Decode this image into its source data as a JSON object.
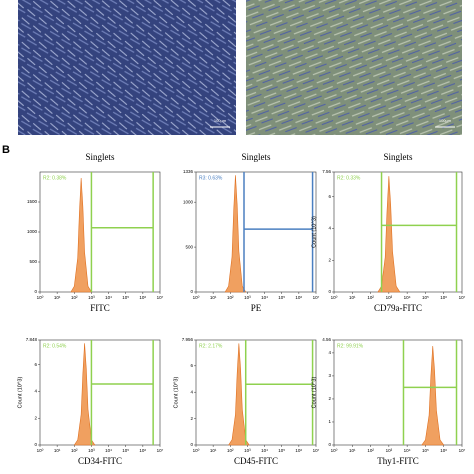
{
  "panel_label": "B",
  "images": [
    {
      "scale_bar": "100μm"
    },
    {
      "scale_bar": "100μm"
    }
  ],
  "chart_data": [
    {
      "type": "area",
      "title": "Singlets",
      "xlabel": "FITC",
      "x": [
        1.8,
        2.0,
        2.2,
        2.3,
        2.4,
        2.5,
        2.6,
        2.8,
        3.0
      ],
      "values": [
        0,
        95,
        570,
        1330,
        1900,
        1425,
        665,
        95,
        0
      ],
      "color": "#f0a060",
      "xlim": [
        0,
        7
      ],
      "xticks": [
        {
          "value": 0,
          "label": "10⁰"
        },
        {
          "value": 1,
          "label": "10¹"
        },
        {
          "value": 2,
          "label": "10²"
        },
        {
          "value": 3,
          "label": "10³"
        },
        {
          "value": 4,
          "label": "10⁴"
        },
        {
          "value": 5,
          "label": "10⁵"
        },
        {
          "value": 6,
          "label": "10⁶"
        },
        {
          "value": 7,
          "label": "10⁷"
        }
      ],
      "ylim": [
        0,
        2000
      ],
      "yticks": [
        0,
        500,
        1000,
        1500
      ],
      "gate": {
        "x": [
          3.0,
          6.6
        ],
        "level": 1070,
        "color": "#8fd14f"
      },
      "gate_label": "R2: 0.38%"
    },
    {
      "type": "area",
      "title": "Singlets",
      "xlabel": "PE",
      "x": [
        1.7,
        1.9,
        2.1,
        2.2,
        2.3,
        2.4,
        2.5,
        2.7,
        2.9
      ],
      "values": [
        0,
        65,
        390,
        910,
        1300,
        975,
        455,
        65,
        0
      ],
      "color": "#f0a060",
      "xlim": [
        0,
        7
      ],
      "xticks": [
        {
          "value": 0,
          "label": "10⁰"
        },
        {
          "value": 1,
          "label": "10¹"
        },
        {
          "value": 2,
          "label": "10²"
        },
        {
          "value": 3,
          "label": "10³"
        },
        {
          "value": 4,
          "label": "10⁴"
        },
        {
          "value": 5,
          "label": "10⁵"
        },
        {
          "value": 6,
          "label": "10⁶"
        },
        {
          "value": 7,
          "label": "10⁷"
        }
      ],
      "ylim": [
        0,
        1336
      ],
      "yticks": [
        0,
        500,
        1000,
        1336
      ],
      "gate": {
        "x": [
          2.8,
          6.8
        ],
        "level": 700,
        "color": "#4a7fc1"
      },
      "gate_label": "R3: 0.63%"
    },
    {
      "type": "area",
      "title": "Singlets",
      "xlabel": "CD79a-FITC",
      "ylabel": "Count (10^3)",
      "x": [
        2.4,
        2.6,
        2.8,
        2.9,
        3.0,
        3.1,
        3.2,
        3.4,
        3.6
      ],
      "values": [
        0,
        0.37,
        2.19,
        5.11,
        7.3,
        5.48,
        2.56,
        0.37,
        0
      ],
      "color": "#f0a060",
      "xlim": [
        0,
        7
      ],
      "xticks": [
        {
          "value": 0,
          "label": "10⁰"
        },
        {
          "value": 1,
          "label": "10¹"
        },
        {
          "value": 2,
          "label": "10²"
        },
        {
          "value": 3,
          "label": "10³"
        },
        {
          "value": 4,
          "label": "10⁴"
        },
        {
          "value": 5,
          "label": "10⁵"
        },
        {
          "value": 6,
          "label": "10⁶"
        },
        {
          "value": 7,
          "label": "10⁷"
        }
      ],
      "ylim": [
        0,
        7.56
      ],
      "yticks": [
        0,
        2,
        4,
        6,
        7.56
      ],
      "gate": {
        "x": [
          2.6,
          6.7
        ],
        "level": 4.2,
        "color": "#8fd14f"
      },
      "gate_label": "R2: 0.33%"
    },
    {
      "type": "area",
      "xlabel": "CD34-FITC",
      "ylabel": "Count (10^3)",
      "x": [
        2.0,
        2.2,
        2.4,
        2.5,
        2.6,
        2.7,
        2.8,
        3.0,
        3.2
      ],
      "values": [
        0,
        0.38,
        2.28,
        5.32,
        7.6,
        5.7,
        2.66,
        0.38,
        0
      ],
      "color": "#f0a060",
      "xlim": [
        0,
        7
      ],
      "xticks": [
        {
          "value": 0,
          "label": "10⁰"
        },
        {
          "value": 1,
          "label": "10¹"
        },
        {
          "value": 2,
          "label": "10²"
        },
        {
          "value": 3,
          "label": "10³"
        },
        {
          "value": 4,
          "label": "10⁴"
        },
        {
          "value": 5,
          "label": "10⁵"
        },
        {
          "value": 6,
          "label": "10⁶"
        },
        {
          "value": 7,
          "label": "10⁷"
        }
      ],
      "ylim": [
        0,
        7.848
      ],
      "yticks": [
        0,
        2,
        4,
        6,
        7.848
      ],
      "gate": {
        "x": [
          3.0,
          6.6
        ],
        "level": 4.56,
        "color": "#8fd14f"
      },
      "gate_label": "R2: 0.54%"
    },
    {
      "type": "area",
      "xlabel": "CD45-FITC",
      "ylabel": "Count (10^3)",
      "x": [
        1.9,
        2.1,
        2.3,
        2.4,
        2.5,
        2.6,
        2.7,
        2.9,
        3.1
      ],
      "values": [
        0,
        0.39,
        2.31,
        5.39,
        7.7,
        5.78,
        2.7,
        0.39,
        0
      ],
      "color": "#f0a060",
      "xlim": [
        0,
        7
      ],
      "xticks": [
        {
          "value": 0,
          "label": "10⁰"
        },
        {
          "value": 1,
          "label": "10¹"
        },
        {
          "value": 2,
          "label": "10²"
        },
        {
          "value": 3,
          "label": "10³"
        },
        {
          "value": 4,
          "label": "10⁴"
        },
        {
          "value": 5,
          "label": "10⁵"
        },
        {
          "value": 6,
          "label": "10⁶"
        },
        {
          "value": 7,
          "label": "10⁷"
        }
      ],
      "ylim": [
        0,
        7.956
      ],
      "yticks": [
        0,
        2,
        4,
        6,
        7.956
      ],
      "gate": {
        "x": [
          2.9,
          6.8
        ],
        "level": 4.6,
        "color": "#8fd14f"
      },
      "gate_label": "R2: 2.17%"
    },
    {
      "type": "area",
      "xlabel": "Thy1-FITC",
      "ylabel": "Count (10^3)",
      "x": [
        4.8,
        5.0,
        5.2,
        5.3,
        5.4,
        5.5,
        5.6,
        5.8,
        6.0
      ],
      "values": [
        0,
        0.22,
        1.29,
        3.01,
        4.3,
        3.23,
        1.51,
        0.22,
        0
      ],
      "color": "#f0a060",
      "xlim": [
        0,
        7
      ],
      "xticks": [
        {
          "value": 0,
          "label": "10⁰"
        },
        {
          "value": 1,
          "label": "10¹"
        },
        {
          "value": 2,
          "label": "10²"
        },
        {
          "value": 3,
          "label": "10³"
        },
        {
          "value": 4,
          "label": "10⁴"
        },
        {
          "value": 5,
          "label": "10⁵"
        },
        {
          "value": 6,
          "label": "10⁶"
        },
        {
          "value": 7,
          "label": "10⁷"
        }
      ],
      "ylim": [
        0,
        4.56
      ],
      "yticks": [
        0,
        1,
        2,
        3,
        4,
        4.56
      ],
      "gate": {
        "x": [
          3.8,
          6.7
        ],
        "level": 2.5,
        "color": "#8fd14f"
      },
      "gate_label": "R2: 99.91%"
    }
  ]
}
